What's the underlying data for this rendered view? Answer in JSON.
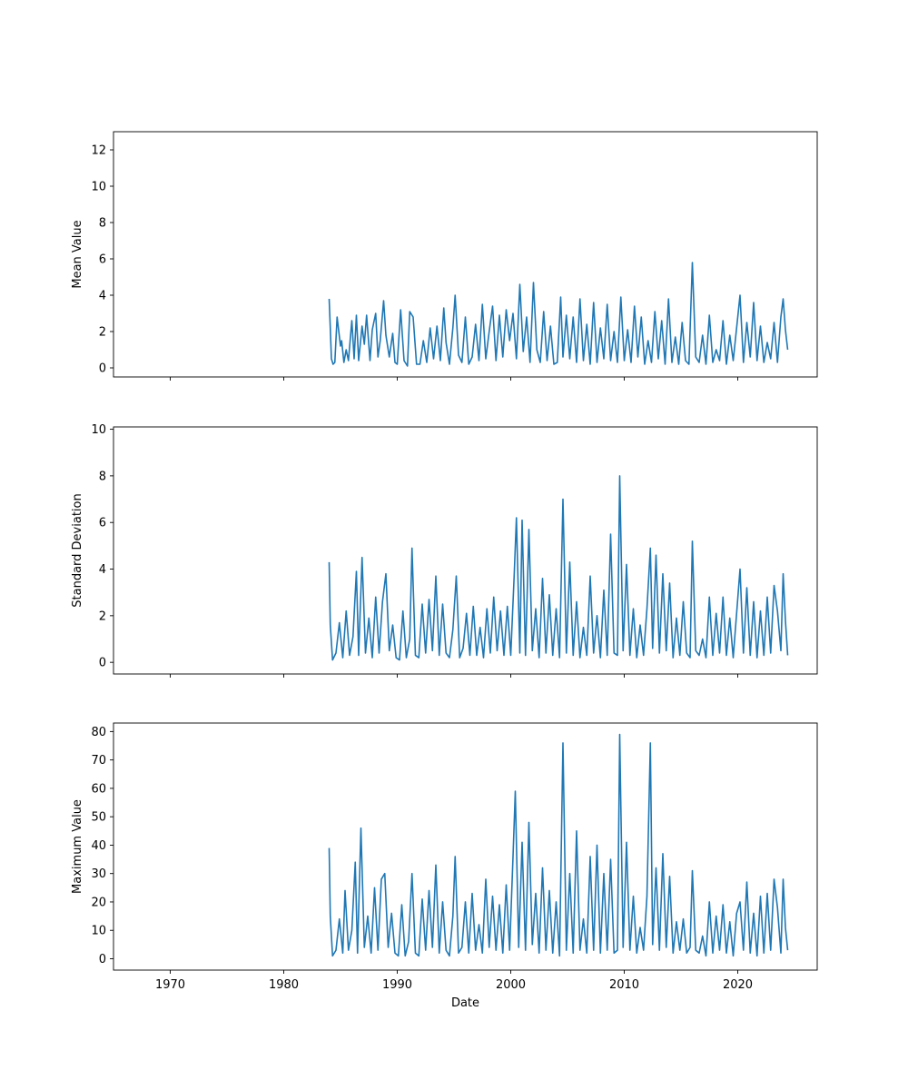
{
  "figure": {
    "xlabel": "Date"
  },
  "chart_data": [
    {
      "type": "line",
      "ylabel": "Mean Value",
      "xlim": [
        1965,
        2027
      ],
      "ylim": [
        -0.5,
        13
      ],
      "xticks": [
        1970,
        1980,
        1990,
        2000,
        2010,
        2020
      ],
      "yticks": [
        0,
        2,
        4,
        6,
        8,
        10,
        12
      ],
      "show_xtick_labels": false,
      "color": "#1f77b4",
      "series": [
        {
          "x": [
            1984.0,
            1984.1,
            1984.2,
            1984.35,
            1984.5,
            1984.7,
            1985.0,
            1985.1,
            1985.3,
            1985.5,
            1985.7,
            1986.0,
            1986.2,
            1986.4,
            1986.6,
            1986.9,
            1987.1,
            1987.3,
            1987.6,
            1987.8,
            1988.1,
            1988.3,
            1988.5,
            1988.8,
            1989.0,
            1989.3,
            1989.6,
            1989.8,
            1990.0,
            1990.3,
            1990.6,
            1990.9,
            1991.1,
            1991.4,
            1991.7,
            1992.0,
            1992.3,
            1992.6,
            1992.9,
            1993.2,
            1993.5,
            1993.8,
            1994.1,
            1994.3,
            1994.6,
            1994.9,
            1995.1,
            1995.4,
            1995.7,
            1996.0,
            1996.3,
            1996.6,
            1996.9,
            1997.2,
            1997.5,
            1997.8,
            1998.1,
            1998.4,
            1998.7,
            1999.0,
            1999.3,
            1999.6,
            1999.9,
            2000.2,
            2000.5,
            2000.8,
            2001.1,
            2001.4,
            2001.7,
            2002.0,
            2002.3,
            2002.6,
            2002.9,
            2003.2,
            2003.5,
            2003.8,
            2004.1,
            2004.4,
            2004.6,
            2004.9,
            2005.2,
            2005.5,
            2005.8,
            2006.1,
            2006.4,
            2006.7,
            2007.0,
            2007.3,
            2007.6,
            2007.9,
            2008.2,
            2008.5,
            2008.8,
            2009.1,
            2009.4,
            2009.7,
            2010.0,
            2010.3,
            2010.6,
            2010.9,
            2011.2,
            2011.5,
            2011.8,
            2012.1,
            2012.4,
            2012.7,
            2013.0,
            2013.3,
            2013.6,
            2013.9,
            2014.2,
            2014.5,
            2014.8,
            2015.1,
            2015.4,
            2015.7,
            2016.0,
            2016.3,
            2016.6,
            2016.9,
            2017.2,
            2017.5,
            2017.8,
            2018.1,
            2018.4,
            2018.7,
            2019.0,
            2019.3,
            2019.6,
            2019.9,
            2020.2,
            2020.5,
            2020.8,
            2021.1,
            2021.4,
            2021.7,
            2022.0,
            2022.3,
            2022.6,
            2022.9,
            2023.2,
            2023.5,
            2023.8,
            2024.0,
            2024.2,
            2024.4
          ],
          "y": [
            3.8,
            2.2,
            0.5,
            0.2,
            0.3,
            2.8,
            1.2,
            1.5,
            0.3,
            1.0,
            0.4,
            2.6,
            0.5,
            2.9,
            0.4,
            2.3,
            1.3,
            2.9,
            0.4,
            2.1,
            3.0,
            0.6,
            1.5,
            3.7,
            1.8,
            0.6,
            1.9,
            0.3,
            0.2,
            3.2,
            0.4,
            0.1,
            3.1,
            2.8,
            0.2,
            0.2,
            1.5,
            0.3,
            2.2,
            0.5,
            2.3,
            0.4,
            3.3,
            1.4,
            0.2,
            2.2,
            4.0,
            0.7,
            0.3,
            2.8,
            0.2,
            0.6,
            2.4,
            0.4,
            3.5,
            0.5,
            2.0,
            3.4,
            0.4,
            2.9,
            0.6,
            3.2,
            1.5,
            3.0,
            0.5,
            4.6,
            0.9,
            2.8,
            0.3,
            4.7,
            1.0,
            0.3,
            3.1,
            0.4,
            2.3,
            0.2,
            0.3,
            3.9,
            0.6,
            2.9,
            0.5,
            2.8,
            0.3,
            3.8,
            0.4,
            2.4,
            0.2,
            3.6,
            0.3,
            2.2,
            0.5,
            3.5,
            0.4,
            2.0,
            0.3,
            3.9,
            0.4,
            2.1,
            0.3,
            3.4,
            0.6,
            2.8,
            0.2,
            1.5,
            0.3,
            3.1,
            0.5,
            2.6,
            0.2,
            3.8,
            0.3,
            1.7,
            0.2,
            2.5,
            0.4,
            0.2,
            5.8,
            0.6,
            0.3,
            1.8,
            0.2,
            2.9,
            0.3,
            1.0,
            0.4,
            2.6,
            0.2,
            1.8,
            0.4,
            2.2,
            4.0,
            0.3,
            2.5,
            0.6,
            3.6,
            0.4,
            2.3,
            0.3,
            1.4,
            0.5,
            2.5,
            0.3,
            2.8,
            3.8,
            2.1,
            1.0
          ]
        }
      ]
    },
    {
      "type": "line",
      "ylabel": "Standard Deviation",
      "xlim": [
        1965,
        2027
      ],
      "ylim": [
        -0.5,
        10.1
      ],
      "xticks": [
        1970,
        1980,
        1990,
        2000,
        2010,
        2020
      ],
      "yticks": [
        0,
        2,
        4,
        6,
        8,
        10
      ],
      "show_xtick_labels": false,
      "color": "#1f77b4",
      "series": [
        {
          "x": [
            1984.0,
            1984.1,
            1984.3,
            1984.6,
            1984.9,
            1985.2,
            1985.5,
            1985.8,
            1986.1,
            1986.4,
            1986.6,
            1986.9,
            1987.2,
            1987.5,
            1987.8,
            1988.1,
            1988.4,
            1988.7,
            1989.0,
            1989.3,
            1989.6,
            1989.9,
            1990.2,
            1990.5,
            1990.8,
            1991.1,
            1991.3,
            1991.6,
            1991.9,
            1992.2,
            1992.5,
            1992.8,
            1993.1,
            1993.4,
            1993.7,
            1994.0,
            1994.3,
            1994.6,
            1994.9,
            1995.2,
            1995.5,
            1995.8,
            1996.1,
            1996.4,
            1996.7,
            1997.0,
            1997.3,
            1997.6,
            1997.9,
            1998.2,
            1998.5,
            1998.8,
            1999.1,
            1999.4,
            1999.7,
            2000.0,
            2000.3,
            2000.5,
            2000.8,
            2001.0,
            2001.3,
            2001.6,
            2001.9,
            2002.2,
            2002.5,
            2002.8,
            2003.1,
            2003.4,
            2003.7,
            2004.0,
            2004.3,
            2004.6,
            2004.9,
            2005.2,
            2005.5,
            2005.8,
            2006.1,
            2006.4,
            2006.7,
            2007.0,
            2007.3,
            2007.6,
            2007.9,
            2008.2,
            2008.5,
            2008.8,
            2009.1,
            2009.4,
            2009.6,
            2009.9,
            2010.2,
            2010.5,
            2010.8,
            2011.1,
            2011.4,
            2011.7,
            2012.0,
            2012.3,
            2012.5,
            2012.8,
            2013.1,
            2013.4,
            2013.7,
            2014.0,
            2014.3,
            2014.6,
            2014.9,
            2015.2,
            2015.5,
            2015.8,
            2016.0,
            2016.3,
            2016.6,
            2016.9,
            2017.2,
            2017.5,
            2017.8,
            2018.1,
            2018.4,
            2018.7,
            2019.0,
            2019.3,
            2019.6,
            2019.9,
            2020.2,
            2020.5,
            2020.8,
            2021.1,
            2021.4,
            2021.7,
            2022.0,
            2022.3,
            2022.6,
            2022.9,
            2023.2,
            2023.5,
            2023.8,
            2024.0,
            2024.2,
            2024.4
          ],
          "y": [
            4.3,
            1.6,
            0.1,
            0.4,
            1.7,
            0.2,
            2.2,
            0.3,
            1.1,
            3.9,
            0.3,
            4.5,
            0.4,
            1.9,
            0.2,
            2.8,
            0.4,
            2.6,
            3.8,
            0.5,
            1.6,
            0.2,
            0.1,
            2.2,
            0.2,
            1.0,
            4.9,
            0.3,
            0.2,
            2.5,
            0.4,
            2.7,
            0.5,
            3.7,
            0.3,
            2.5,
            0.4,
            0.2,
            1.4,
            3.7,
            0.2,
            0.6,
            2.1,
            0.3,
            2.4,
            0.3,
            1.5,
            0.2,
            2.3,
            0.4,
            2.8,
            0.5,
            2.2,
            0.3,
            2.4,
            0.3,
            3.7,
            6.2,
            0.4,
            6.1,
            0.3,
            5.7,
            0.5,
            2.3,
            0.2,
            3.6,
            0.4,
            2.9,
            0.3,
            2.3,
            0.2,
            7.0,
            0.4,
            4.3,
            0.3,
            2.6,
            0.2,
            1.5,
            0.3,
            3.7,
            0.4,
            2.0,
            0.2,
            3.1,
            0.3,
            5.5,
            0.4,
            0.3,
            8.0,
            0.5,
            4.2,
            0.3,
            2.3,
            0.2,
            1.6,
            0.3,
            2.3,
            4.9,
            0.6,
            4.6,
            0.4,
            3.8,
            0.5,
            3.4,
            0.2,
            1.9,
            0.3,
            2.6,
            0.4,
            0.2,
            5.2,
            0.5,
            0.3,
            1.0,
            0.2,
            2.8,
            0.3,
            2.1,
            0.4,
            2.8,
            0.3,
            1.9,
            0.2,
            2.1,
            4.0,
            0.4,
            3.2,
            0.3,
            2.6,
            0.2,
            2.2,
            0.3,
            2.8,
            0.4,
            3.3,
            2.2,
            0.5,
            3.8,
            1.8,
            0.3
          ]
        }
      ]
    },
    {
      "type": "line",
      "ylabel": "Maximum Value",
      "xlabel": "Date",
      "xlim": [
        1965,
        2027
      ],
      "ylim": [
        -4,
        83
      ],
      "xticks": [
        1970,
        1980,
        1990,
        2000,
        2010,
        2020
      ],
      "xtick_labels": [
        "1970",
        "1980",
        "1990",
        "2000",
        "2010",
        "2020"
      ],
      "yticks": [
        0,
        10,
        20,
        30,
        40,
        50,
        60,
        70,
        80
      ],
      "show_xtick_labels": true,
      "color": "#1f77b4",
      "series": [
        {
          "x": [
            1984.0,
            1984.1,
            1984.3,
            1984.6,
            1984.9,
            1985.2,
            1985.4,
            1985.7,
            1986.0,
            1986.3,
            1986.5,
            1986.8,
            1987.1,
            1987.4,
            1987.7,
            1988.0,
            1988.3,
            1988.6,
            1988.9,
            1989.2,
            1989.5,
            1989.8,
            1990.1,
            1990.4,
            1990.7,
            1991.0,
            1991.3,
            1991.6,
            1991.9,
            1992.2,
            1992.5,
            1992.8,
            1993.1,
            1993.4,
            1993.7,
            1994.0,
            1994.3,
            1994.6,
            1994.9,
            1995.1,
            1995.4,
            1995.7,
            1996.0,
            1996.3,
            1996.6,
            1996.9,
            1997.2,
            1997.5,
            1997.8,
            1998.1,
            1998.4,
            1998.7,
            1999.0,
            1999.3,
            1999.6,
            1999.9,
            2000.2,
            2000.4,
            2000.7,
            2001.0,
            2001.3,
            2001.6,
            2001.9,
            2002.2,
            2002.5,
            2002.8,
            2003.1,
            2003.4,
            2003.7,
            2004.0,
            2004.3,
            2004.6,
            2004.9,
            2005.2,
            2005.5,
            2005.8,
            2006.1,
            2006.4,
            2006.7,
            2007.0,
            2007.3,
            2007.6,
            2007.9,
            2008.2,
            2008.5,
            2008.8,
            2009.1,
            2009.4,
            2009.6,
            2009.9,
            2010.2,
            2010.5,
            2010.8,
            2011.1,
            2011.4,
            2011.7,
            2012.0,
            2012.3,
            2012.5,
            2012.8,
            2013.1,
            2013.4,
            2013.7,
            2014.0,
            2014.3,
            2014.6,
            2014.9,
            2015.2,
            2015.5,
            2015.8,
            2016.0,
            2016.3,
            2016.6,
            2016.9,
            2017.2,
            2017.5,
            2017.8,
            2018.1,
            2018.4,
            2018.7,
            2019.0,
            2019.3,
            2019.6,
            2019.9,
            2020.2,
            2020.5,
            2020.8,
            2021.1,
            2021.4,
            2021.7,
            2022.0,
            2022.3,
            2022.6,
            2022.9,
            2023.2,
            2023.5,
            2023.8,
            2024.0,
            2024.2,
            2024.4
          ],
          "y": [
            39,
            15,
            1,
            3,
            14,
            2,
            24,
            3,
            10,
            34,
            2,
            46,
            4,
            15,
            2,
            25,
            3,
            28,
            30,
            4,
            16,
            2,
            1,
            19,
            1,
            6,
            30,
            2,
            1,
            21,
            3,
            24,
            4,
            33,
            2,
            20,
            3,
            1,
            15,
            36,
            2,
            4,
            20,
            2,
            23,
            3,
            12,
            2,
            28,
            4,
            22,
            3,
            19,
            2,
            26,
            3,
            36,
            59,
            4,
            41,
            3,
            48,
            5,
            23,
            2,
            32,
            3,
            24,
            2,
            20,
            1,
            76,
            3,
            30,
            2,
            45,
            3,
            14,
            2,
            36,
            3,
            40,
            2,
            30,
            3,
            35,
            2,
            3,
            79,
            4,
            41,
            3,
            22,
            2,
            11,
            3,
            22,
            76,
            5,
            32,
            3,
            37,
            4,
            29,
            2,
            13,
            3,
            14,
            2,
            4,
            31,
            3,
            2,
            8,
            1,
            20,
            2,
            15,
            3,
            19,
            2,
            13,
            1,
            16,
            20,
            3,
            27,
            2,
            16,
            1,
            22,
            2,
            23,
            3,
            28,
            18,
            2,
            28,
            11,
            3
          ]
        }
      ]
    }
  ]
}
